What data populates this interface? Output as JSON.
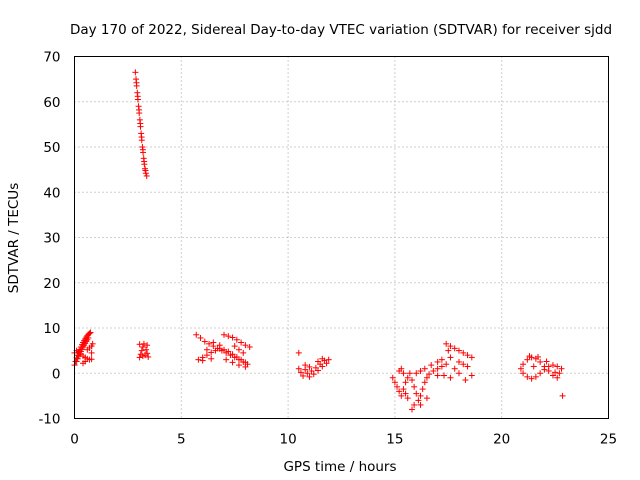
{
  "chart_data": {
    "type": "scatter",
    "title": "Day 170 of 2022, Sidereal Day-to-day VTEC variation (SDTVAR) for receiver sjdd",
    "xlabel": "GPS time / hours",
    "ylabel": "SDTVAR / TECUs",
    "xlim": [
      0,
      25
    ],
    "ylim": [
      -10,
      70
    ],
    "xticks": [
      0,
      5,
      10,
      15,
      20,
      25
    ],
    "yticks": [
      -10,
      0,
      10,
      20,
      30,
      40,
      50,
      60,
      70
    ],
    "grid": true,
    "marker": "+",
    "color": "#ff0000",
    "series": [
      {
        "name": "SDTVAR",
        "points": [
          [
            0.0,
            1.8
          ],
          [
            0.05,
            2.6
          ],
          [
            0.1,
            3.4
          ],
          [
            0.15,
            4.0
          ],
          [
            0.2,
            4.6
          ],
          [
            0.25,
            5.2
          ],
          [
            0.3,
            5.8
          ],
          [
            0.35,
            6.3
          ],
          [
            0.4,
            6.8
          ],
          [
            0.45,
            7.2
          ],
          [
            0.5,
            7.6
          ],
          [
            0.55,
            8.0
          ],
          [
            0.6,
            8.3
          ],
          [
            0.65,
            8.6
          ],
          [
            0.7,
            8.8
          ],
          [
            0.75,
            9.0
          ],
          [
            0.1,
            2.6
          ],
          [
            0.15,
            3.2
          ],
          [
            0.2,
            3.8
          ],
          [
            0.25,
            4.3
          ],
          [
            0.3,
            4.8
          ],
          [
            0.35,
            5.3
          ],
          [
            0.4,
            5.8
          ],
          [
            0.45,
            6.2
          ],
          [
            0.5,
            6.6
          ],
          [
            0.55,
            7.0
          ],
          [
            0.6,
            7.4
          ],
          [
            0.65,
            7.8
          ],
          [
            0.0,
            4.5
          ],
          [
            0.1,
            5.0
          ],
          [
            0.2,
            4.8
          ],
          [
            0.3,
            4.2
          ],
          [
            0.4,
            3.8
          ],
          [
            0.5,
            3.5
          ],
          [
            0.6,
            3.2
          ],
          [
            0.7,
            3.0
          ],
          [
            0.8,
            3.1
          ],
          [
            0.6,
            5.2
          ],
          [
            0.7,
            5.6
          ],
          [
            0.8,
            6.0
          ],
          [
            0.85,
            6.5
          ],
          [
            0.8,
            4.5
          ],
          [
            0.5,
            2.6
          ],
          [
            0.4,
            2.2
          ],
          [
            2.85,
            66.5
          ],
          [
            2.88,
            65.0
          ],
          [
            2.91,
            63.5
          ],
          [
            2.94,
            62.0
          ],
          [
            2.97,
            60.5
          ],
          [
            3.0,
            59.0
          ],
          [
            3.03,
            57.5
          ],
          [
            3.06,
            56.0
          ],
          [
            3.09,
            54.5
          ],
          [
            3.12,
            53.0
          ],
          [
            3.15,
            51.5
          ],
          [
            3.18,
            50.0
          ],
          [
            3.21,
            48.8
          ],
          [
            3.24,
            47.5
          ],
          [
            3.27,
            46.2
          ],
          [
            3.3,
            45.2
          ],
          [
            3.34,
            44.2
          ],
          [
            3.38,
            43.6
          ],
          [
            2.9,
            64.2
          ],
          [
            2.96,
            61.2
          ],
          [
            3.02,
            58.2
          ],
          [
            3.08,
            55.2
          ],
          [
            3.14,
            52.2
          ],
          [
            3.2,
            49.4
          ],
          [
            3.26,
            46.8
          ],
          [
            3.32,
            44.8
          ],
          [
            3.05,
            3.5
          ],
          [
            3.1,
            4.2
          ],
          [
            3.15,
            5.0
          ],
          [
            3.2,
            5.8
          ],
          [
            3.25,
            6.5
          ],
          [
            3.3,
            4.0
          ],
          [
            3.35,
            5.2
          ],
          [
            3.4,
            6.2
          ],
          [
            3.45,
            3.6
          ],
          [
            3.05,
            6.4
          ],
          [
            3.2,
            3.8
          ],
          [
            3.4,
            4.4
          ],
          [
            5.7,
            8.5
          ],
          [
            5.9,
            7.8
          ],
          [
            6.1,
            7.0
          ],
          [
            6.3,
            6.5
          ],
          [
            6.5,
            6.0
          ],
          [
            6.7,
            5.5
          ],
          [
            6.9,
            5.0
          ],
          [
            7.1,
            4.5
          ],
          [
            7.3,
            4.0
          ],
          [
            7.5,
            3.5
          ],
          [
            7.7,
            3.0
          ],
          [
            7.9,
            2.5
          ],
          [
            8.1,
            2.0
          ],
          [
            5.8,
            3.0
          ],
          [
            6.0,
            3.5
          ],
          [
            6.2,
            4.0
          ],
          [
            6.4,
            4.6
          ],
          [
            6.6,
            5.0
          ],
          [
            6.8,
            5.4
          ],
          [
            7.0,
            5.2
          ],
          [
            7.2,
            4.8
          ],
          [
            7.4,
            4.2
          ],
          [
            7.6,
            3.6
          ],
          [
            7.8,
            3.0
          ],
          [
            8.0,
            2.4
          ],
          [
            6.2,
            5.2
          ],
          [
            6.5,
            6.8
          ],
          [
            6.8,
            6.2
          ],
          [
            7.1,
            3.0
          ],
          [
            7.4,
            2.4
          ],
          [
            7.7,
            1.8
          ],
          [
            8.0,
            1.4
          ],
          [
            6.0,
            2.8
          ],
          [
            6.4,
            3.2
          ],
          [
            7.0,
            8.5
          ],
          [
            7.2,
            8.2
          ],
          [
            7.4,
            7.9
          ],
          [
            7.6,
            7.4
          ],
          [
            7.8,
            6.8
          ],
          [
            8.0,
            6.2
          ],
          [
            8.2,
            5.8
          ],
          [
            7.5,
            6.0
          ],
          [
            7.7,
            5.2
          ],
          [
            7.9,
            4.5
          ],
          [
            10.5,
            4.5
          ],
          [
            10.5,
            1.0
          ],
          [
            10.6,
            0.2
          ],
          [
            10.7,
            -0.6
          ],
          [
            10.8,
            0.8
          ],
          [
            10.9,
            0.0
          ],
          [
            11.0,
            -0.8
          ],
          [
            11.1,
            0.5
          ],
          [
            11.2,
            -0.2
          ],
          [
            11.3,
            1.2
          ],
          [
            11.4,
            0.6
          ],
          [
            11.5,
            2.0
          ],
          [
            11.6,
            1.5
          ],
          [
            11.7,
            2.8
          ],
          [
            11.8,
            2.2
          ],
          [
            11.6,
            3.2
          ],
          [
            11.4,
            2.6
          ],
          [
            11.0,
            1.4
          ],
          [
            10.8,
            1.8
          ],
          [
            11.9,
            3.0
          ],
          [
            14.9,
            -1.0
          ],
          [
            15.0,
            -2.0
          ],
          [
            15.1,
            -3.0
          ],
          [
            15.2,
            -4.0
          ],
          [
            15.3,
            -5.0
          ],
          [
            15.4,
            -3.5
          ],
          [
            15.5,
            -2.0
          ],
          [
            15.6,
            -1.0
          ],
          [
            15.7,
            0.0
          ],
          [
            15.8,
            -1.5
          ],
          [
            15.9,
            -3.0
          ],
          [
            16.0,
            -4.5
          ],
          [
            16.1,
            -6.0
          ],
          [
            15.2,
            0.5
          ],
          [
            15.3,
            1.0
          ],
          [
            15.4,
            0.0
          ],
          [
            15.5,
            -4.5
          ],
          [
            15.6,
            -5.5
          ],
          [
            15.8,
            -8.0
          ],
          [
            15.9,
            -7.0
          ],
          [
            16.2,
            -5.0
          ],
          [
            16.3,
            -3.5
          ],
          [
            16.4,
            -2.0
          ],
          [
            16.5,
            -1.0
          ],
          [
            16.6,
            -0.2
          ],
          [
            16.8,
            0.5
          ],
          [
            17.0,
            1.0
          ],
          [
            17.2,
            1.5
          ],
          [
            17.4,
            2.0
          ],
          [
            17.6,
            3.5
          ],
          [
            17.5,
            5.0
          ],
          [
            17.4,
            6.5
          ],
          [
            17.6,
            6.0
          ],
          [
            17.8,
            5.5
          ],
          [
            18.0,
            5.0
          ],
          [
            18.2,
            4.5
          ],
          [
            18.4,
            4.0
          ],
          [
            18.6,
            3.5
          ],
          [
            18.0,
            2.5
          ],
          [
            18.2,
            2.0
          ],
          [
            18.4,
            1.5
          ],
          [
            18.6,
            -0.5
          ],
          [
            18.3,
            -1.5
          ],
          [
            18.0,
            0.0
          ],
          [
            17.8,
            1.0
          ],
          [
            17.2,
            3.0
          ],
          [
            17.0,
            2.5
          ],
          [
            16.7,
            1.8
          ],
          [
            16.4,
            1.0
          ],
          [
            16.2,
            0.5
          ],
          [
            16.0,
            0.0
          ],
          [
            16.5,
            -5.5
          ],
          [
            16.2,
            -7.0
          ],
          [
            17.0,
            -0.5
          ],
          [
            17.3,
            -0.5
          ],
          [
            17.6,
            -1.0
          ],
          [
            20.9,
            1.0
          ],
          [
            21.0,
            2.0
          ],
          [
            21.2,
            3.0
          ],
          [
            21.4,
            3.5
          ],
          [
            21.6,
            3.2
          ],
          [
            21.8,
            2.5
          ],
          [
            22.0,
            1.5
          ],
          [
            22.2,
            0.5
          ],
          [
            22.4,
            -0.5
          ],
          [
            22.6,
            -1.0
          ],
          [
            22.7,
            0.0
          ],
          [
            22.8,
            1.0
          ],
          [
            22.6,
            1.5
          ],
          [
            22.4,
            1.8
          ],
          [
            22.2,
            1.5
          ],
          [
            22.0,
            0.8
          ],
          [
            21.8,
            0.0
          ],
          [
            21.6,
            -0.8
          ],
          [
            21.4,
            -1.2
          ],
          [
            21.2,
            -0.8
          ],
          [
            21.0,
            0.0
          ],
          [
            21.3,
            3.8
          ],
          [
            21.7,
            3.6
          ],
          [
            22.1,
            2.6
          ],
          [
            22.5,
            0.2
          ],
          [
            21.5,
            1.5
          ],
          [
            22.85,
            -5.0
          ]
        ]
      }
    ]
  }
}
